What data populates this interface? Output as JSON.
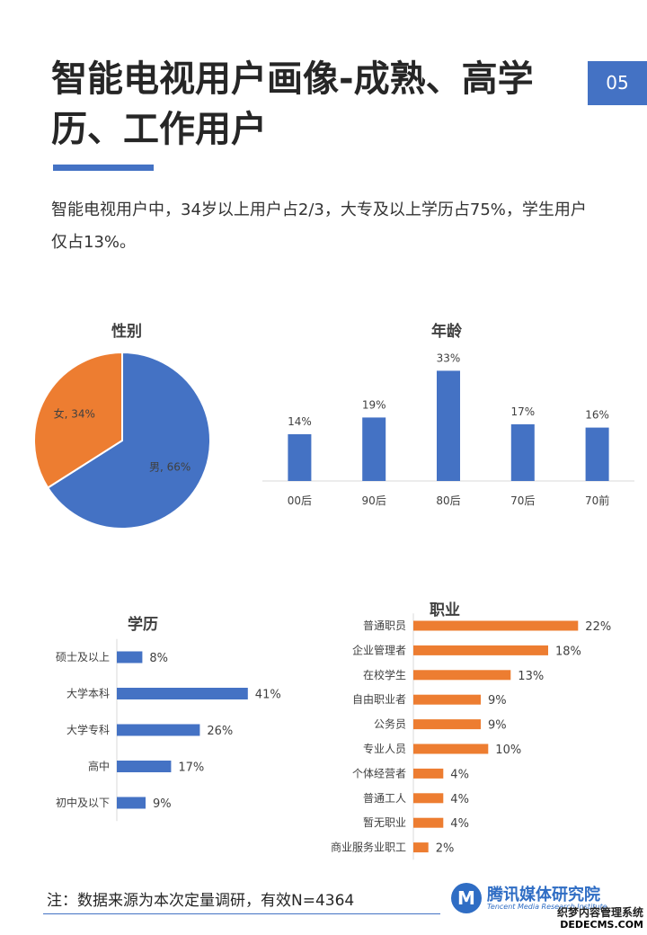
{
  "header": {
    "title": "智能电视用户画像-成熟、高学历、工作用户",
    "page_number": "05",
    "intro": "智能电视用户中，34岁以上用户占2/3，大专及以上学历占75%，学生用户仅占13%。"
  },
  "chart_data": [
    {
      "type": "pie",
      "title": "性别",
      "slices": [
        {
          "label": "男",
          "value": 66,
          "data_label": "男, 66%"
        },
        {
          "label": "女",
          "value": 34,
          "data_label": "女, 34%"
        }
      ],
      "colors": [
        "#4472C4",
        "#ED7D31"
      ]
    },
    {
      "type": "bar",
      "title": "年龄",
      "categories": [
        "00后",
        "90后",
        "80后",
        "70后",
        "70前"
      ],
      "values": [
        14,
        19,
        33,
        17,
        16
      ],
      "data_labels": [
        "14%",
        "19%",
        "33%",
        "17%",
        "16%"
      ],
      "ylim": [
        0,
        35
      ],
      "color": "#4472C4"
    },
    {
      "type": "bar",
      "orientation": "horizontal",
      "title": "学历",
      "categories": [
        "硕士及以上",
        "大学本科",
        "大学专科",
        "高中",
        "初中及以下"
      ],
      "values": [
        8,
        41,
        26,
        17,
        9
      ],
      "data_labels": [
        "8%",
        "41%",
        "26%",
        "17%",
        "9%"
      ],
      "xlim": [
        0,
        45
      ],
      "color": "#4472C4"
    },
    {
      "type": "bar",
      "orientation": "horizontal",
      "title": "职业",
      "categories": [
        "普通职员",
        "企业管理者",
        "在校学生",
        "自由职业者",
        "公务员",
        "专业人员",
        "个体经营者",
        "普通工人",
        "暂无职业",
        "商业服务业职工"
      ],
      "values": [
        22,
        18,
        13,
        9,
        9,
        10,
        4,
        4,
        4,
        2
      ],
      "data_labels": [
        "22%",
        "18%",
        "13%",
        "9%",
        "9%",
        "10%",
        "4%",
        "4%",
        "4%",
        "2%"
      ],
      "xlim": [
        0,
        24
      ],
      "color": "#ED7D31"
    }
  ],
  "footer": {
    "note": "注：数据来源为本次定量调研，有效N=4364",
    "logo_badge": "M",
    "logo_name": "腾讯媒体研究院",
    "logo_sub": "Tencent Media Research Institute",
    "site_name": "织梦内容管理系统",
    "site_url": "DEDECMS.COM"
  }
}
